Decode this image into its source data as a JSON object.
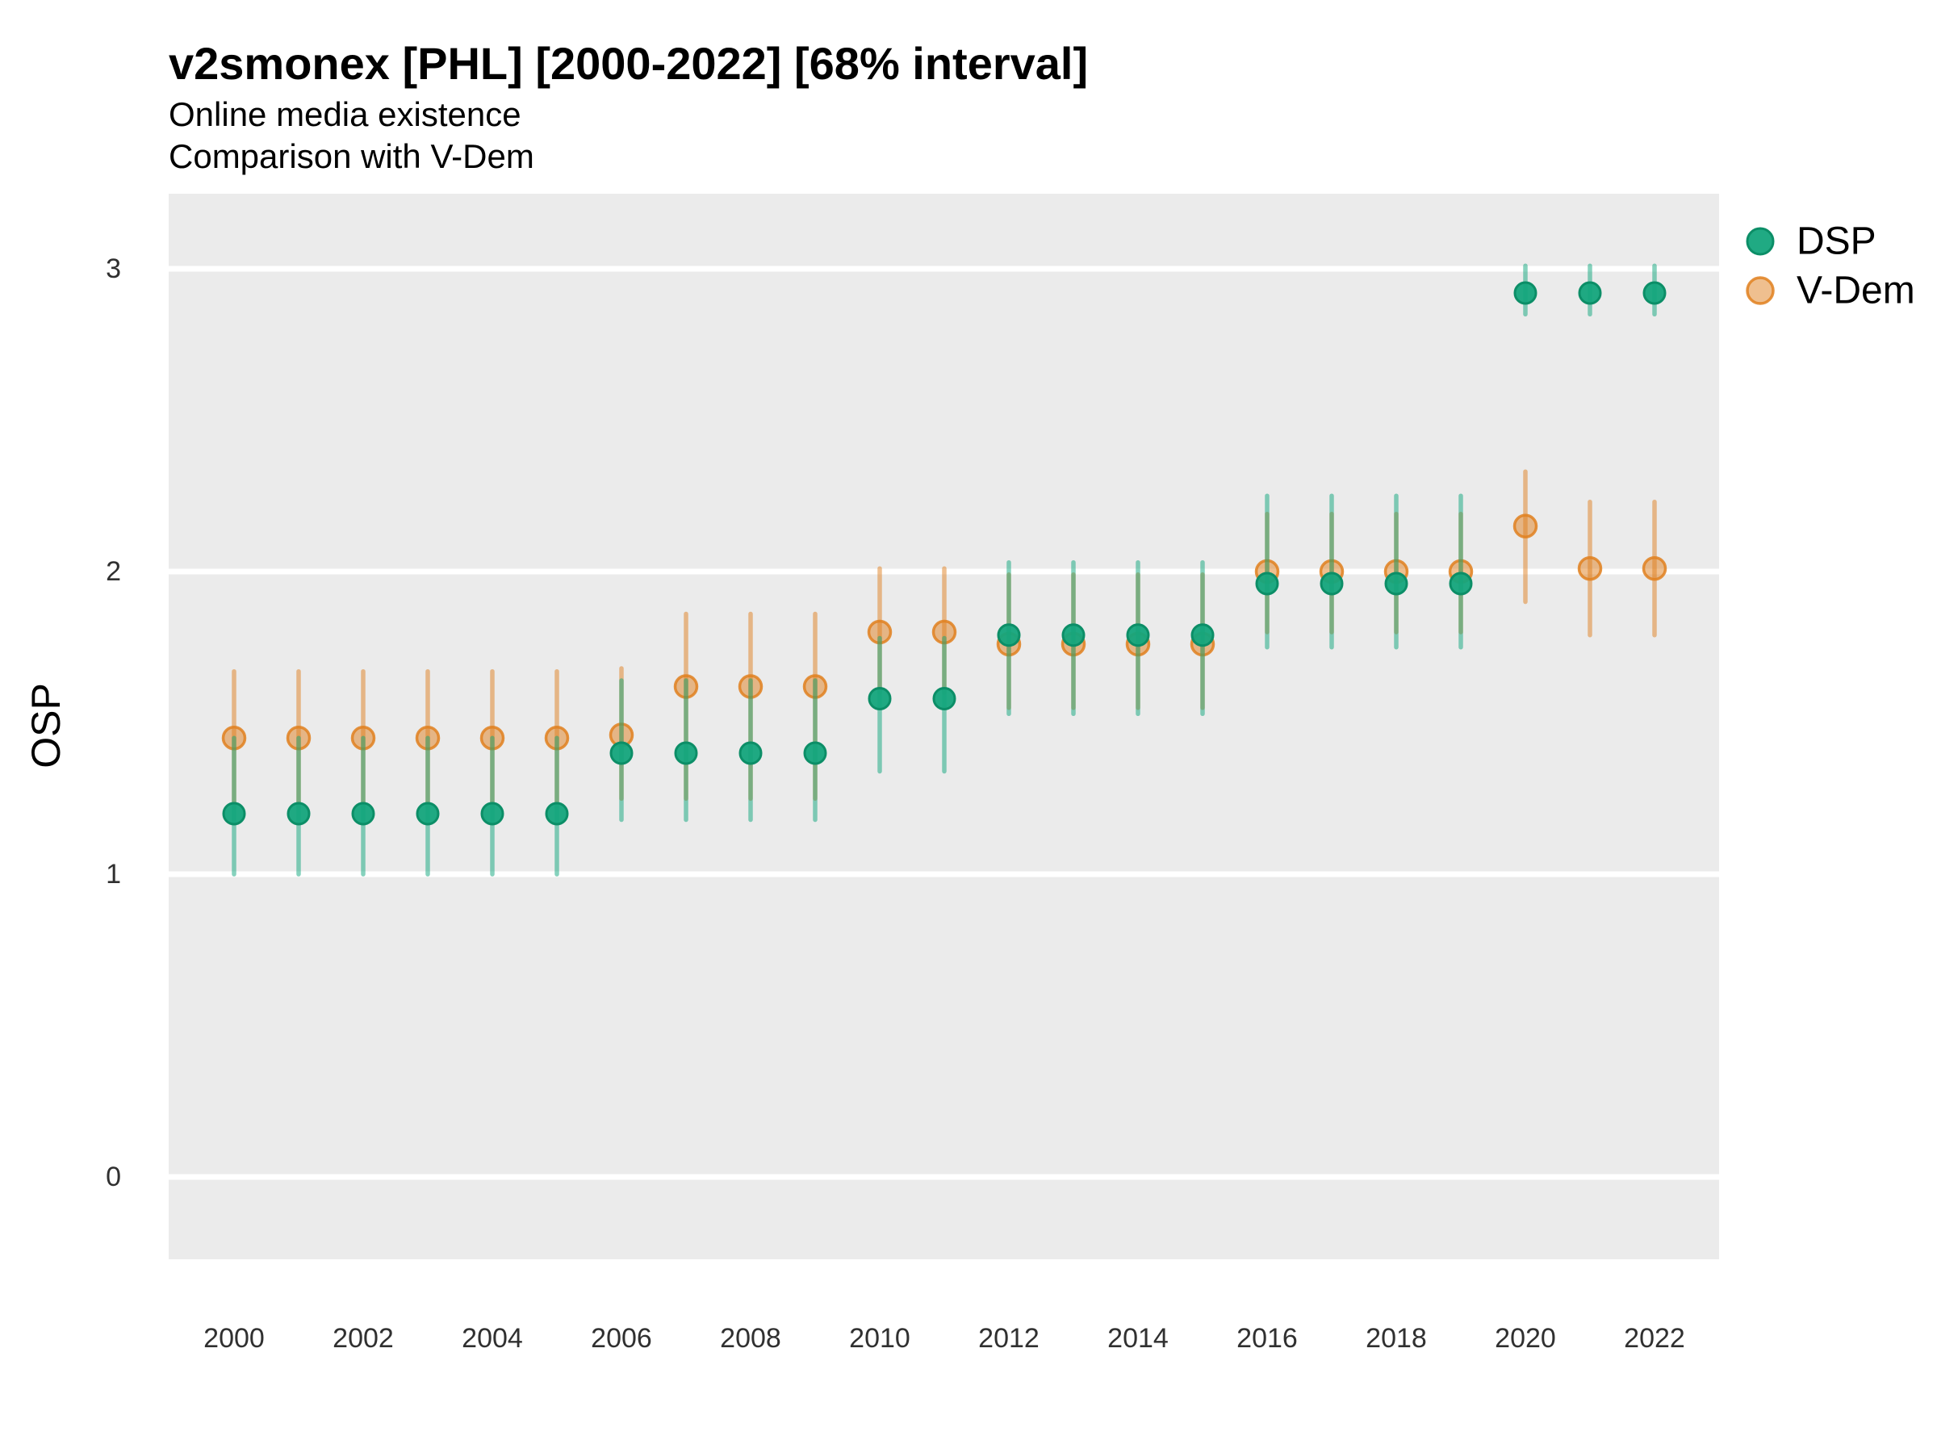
{
  "header": {
    "title": "v2smonex [PHL] [2000-2022] [68% interval]",
    "subtitle_line1": "Online media existence",
    "subtitle_line2": "Comparison with V-Dem"
  },
  "y_axis": {
    "title": "OSP",
    "ticks": [
      {
        "label": "3",
        "value": 3
      },
      {
        "label": "2",
        "value": 2
      },
      {
        "label": "1",
        "value": 1
      },
      {
        "label": "0",
        "value": 0
      }
    ]
  },
  "x_axis": {
    "ticks": [
      {
        "label": "2000",
        "value": 2000
      },
      {
        "label": "2002",
        "value": 2002
      },
      {
        "label": "2004",
        "value": 2004
      },
      {
        "label": "2006",
        "value": 2006
      },
      {
        "label": "2008",
        "value": 2008
      },
      {
        "label": "2010",
        "value": 2010
      },
      {
        "label": "2012",
        "value": 2012
      },
      {
        "label": "2014",
        "value": 2014
      },
      {
        "label": "2016",
        "value": 2016
      },
      {
        "label": "2018",
        "value": 2018
      },
      {
        "label": "2020",
        "value": 2020
      },
      {
        "label": "2022",
        "value": 2022
      }
    ]
  },
  "legend": {
    "items": [
      {
        "label": "DSP",
        "color": "#10a077"
      },
      {
        "label": "V-Dem",
        "color": "#e0801f"
      }
    ]
  },
  "colors": {
    "panel_background": "#ebebeb",
    "gridline": "#ffffff",
    "dsp": "#10a077",
    "dsp_stroke": "#0c8e67",
    "vdem": "#e0801f",
    "text": "#000000",
    "tick_text": "#303030"
  },
  "chart_data": {
    "type": "scatter",
    "title": "v2smonex [PHL] [2000-2022] [68% interval]",
    "subtitle": [
      "Online media existence",
      "Comparison with V-Dem"
    ],
    "ylabel": "OSP",
    "xlabel": "",
    "interval": "68%",
    "ylim": [
      0,
      3
    ],
    "x_range": [
      2000,
      2022
    ],
    "grid": "major-y white lines on gray panel, legend right",
    "series": [
      {
        "name": "DSP",
        "points": [
          {
            "year": 2000,
            "value": 1.2,
            "lo": 1.0,
            "hi": 1.45
          },
          {
            "year": 2001,
            "value": 1.2,
            "lo": 1.0,
            "hi": 1.45
          },
          {
            "year": 2002,
            "value": 1.2,
            "lo": 1.0,
            "hi": 1.45
          },
          {
            "year": 2003,
            "value": 1.2,
            "lo": 1.0,
            "hi": 1.45
          },
          {
            "year": 2004,
            "value": 1.2,
            "lo": 1.0,
            "hi": 1.45
          },
          {
            "year": 2005,
            "value": 1.2,
            "lo": 1.0,
            "hi": 1.45
          },
          {
            "year": 2006,
            "value": 1.4,
            "lo": 1.18,
            "hi": 1.64
          },
          {
            "year": 2007,
            "value": 1.4,
            "lo": 1.18,
            "hi": 1.64
          },
          {
            "year": 2008,
            "value": 1.4,
            "lo": 1.18,
            "hi": 1.64
          },
          {
            "year": 2009,
            "value": 1.4,
            "lo": 1.18,
            "hi": 1.64
          },
          {
            "year": 2010,
            "value": 1.58,
            "lo": 1.34,
            "hi": 1.78
          },
          {
            "year": 2011,
            "value": 1.58,
            "lo": 1.34,
            "hi": 1.78
          },
          {
            "year": 2012,
            "value": 1.79,
            "lo": 1.53,
            "hi": 2.03
          },
          {
            "year": 2013,
            "value": 1.79,
            "lo": 1.53,
            "hi": 2.03
          },
          {
            "year": 2014,
            "value": 1.79,
            "lo": 1.53,
            "hi": 2.03
          },
          {
            "year": 2015,
            "value": 1.79,
            "lo": 1.53,
            "hi": 2.03
          },
          {
            "year": 2016,
            "value": 1.96,
            "lo": 1.75,
            "hi": 2.25
          },
          {
            "year": 2017,
            "value": 1.96,
            "lo": 1.75,
            "hi": 2.25
          },
          {
            "year": 2018,
            "value": 1.96,
            "lo": 1.75,
            "hi": 2.25
          },
          {
            "year": 2019,
            "value": 1.96,
            "lo": 1.75,
            "hi": 2.25
          },
          {
            "year": 2020,
            "value": 2.92,
            "lo": 2.85,
            "hi": 3.01
          },
          {
            "year": 2021,
            "value": 2.92,
            "lo": 2.85,
            "hi": 3.01
          },
          {
            "year": 2022,
            "value": 2.92,
            "lo": 2.85,
            "hi": 3.01
          }
        ]
      },
      {
        "name": "V-Dem",
        "points": [
          {
            "year": 2000,
            "value": 1.45,
            "lo": 1.22,
            "hi": 1.67
          },
          {
            "year": 2001,
            "value": 1.45,
            "lo": 1.22,
            "hi": 1.67
          },
          {
            "year": 2002,
            "value": 1.45,
            "lo": 1.22,
            "hi": 1.67
          },
          {
            "year": 2003,
            "value": 1.45,
            "lo": 1.22,
            "hi": 1.67
          },
          {
            "year": 2004,
            "value": 1.45,
            "lo": 1.22,
            "hi": 1.67
          },
          {
            "year": 2005,
            "value": 1.45,
            "lo": 1.22,
            "hi": 1.67
          },
          {
            "year": 2006,
            "value": 1.46,
            "lo": 1.25,
            "hi": 1.68
          },
          {
            "year": 2007,
            "value": 1.62,
            "lo": 1.25,
            "hi": 1.86
          },
          {
            "year": 2008,
            "value": 1.62,
            "lo": 1.25,
            "hi": 1.86
          },
          {
            "year": 2009,
            "value": 1.62,
            "lo": 1.25,
            "hi": 1.86
          },
          {
            "year": 2010,
            "value": 1.8,
            "lo": 1.6,
            "hi": 2.01
          },
          {
            "year": 2011,
            "value": 1.8,
            "lo": 1.6,
            "hi": 2.01
          },
          {
            "year": 2012,
            "value": 1.76,
            "lo": 1.55,
            "hi": 1.99
          },
          {
            "year": 2013,
            "value": 1.76,
            "lo": 1.55,
            "hi": 1.99
          },
          {
            "year": 2014,
            "value": 1.76,
            "lo": 1.55,
            "hi": 1.99
          },
          {
            "year": 2015,
            "value": 1.76,
            "lo": 1.55,
            "hi": 1.99
          },
          {
            "year": 2016,
            "value": 2.0,
            "lo": 1.8,
            "hi": 2.19
          },
          {
            "year": 2017,
            "value": 2.0,
            "lo": 1.8,
            "hi": 2.19
          },
          {
            "year": 2018,
            "value": 2.0,
            "lo": 1.8,
            "hi": 2.19
          },
          {
            "year": 2019,
            "value": 2.0,
            "lo": 1.8,
            "hi": 2.19
          },
          {
            "year": 2020,
            "value": 2.15,
            "lo": 1.9,
            "hi": 2.33
          },
          {
            "year": 2021,
            "value": 2.01,
            "lo": 1.79,
            "hi": 2.23
          },
          {
            "year": 2022,
            "value": 2.01,
            "lo": 1.79,
            "hi": 2.23
          }
        ]
      }
    ]
  }
}
